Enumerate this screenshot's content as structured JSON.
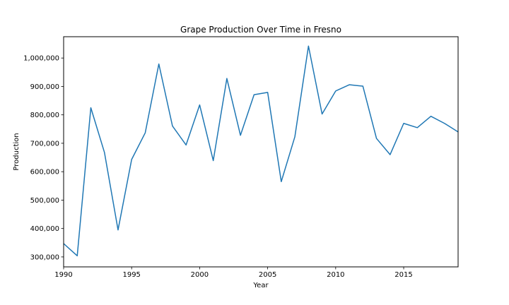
{
  "chart_data": {
    "type": "line",
    "title": "Grape Production Over Time in Fresno",
    "xlabel": "Year",
    "ylabel": "Production",
    "xlim": [
      1990,
      2019
    ],
    "ylim": [
      265000,
      1075000
    ],
    "grid": false,
    "legend": "none",
    "x_ticks": [
      1990,
      1995,
      2000,
      2005,
      2010,
      2015
    ],
    "x_tick_labels": [
      "1990",
      "1995",
      "2000",
      "2005",
      "2010",
      "2015"
    ],
    "y_ticks": [
      300000,
      400000,
      500000,
      600000,
      700000,
      800000,
      900000,
      1000000
    ],
    "y_tick_labels": [
      "300,000",
      "400,000",
      "500,000",
      "600,000",
      "700,000",
      "800,000",
      "900,000",
      "1,000,000"
    ],
    "series": [
      {
        "color": "#1f77b4",
        "x": [
          1990,
          1991,
          1992,
          1993,
          1994,
          1995,
          1996,
          1997,
          1998,
          1999,
          2000,
          2001,
          2002,
          2003,
          2004,
          2005,
          2006,
          2007,
          2008,
          2009,
          2010,
          2011,
          2012,
          2013,
          2014,
          2015,
          2016,
          2017,
          2018,
          2019
        ],
        "values": [
          347000,
          304000,
          825000,
          668000,
          395000,
          643000,
          737000,
          979000,
          761000,
          694000,
          835000,
          639000,
          928000,
          728000,
          871000,
          879000,
          565000,
          723000,
          1042000,
          803000,
          884000,
          906000,
          901000,
          717000,
          660000,
          770000,
          755000,
          795000,
          770000,
          740000
        ]
      }
    ]
  }
}
